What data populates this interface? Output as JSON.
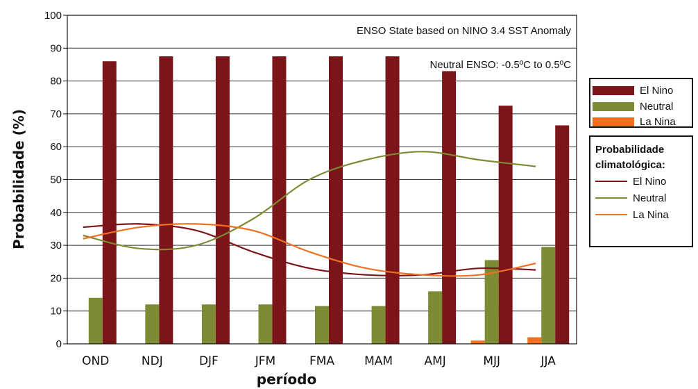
{
  "chart_data": {
    "type": "bar",
    "ylabel": "Probabilidade (%)",
    "xlabel": "período",
    "ylim": [
      0,
      100
    ],
    "yticks": [
      0,
      10,
      20,
      30,
      40,
      50,
      60,
      70,
      80,
      90,
      100
    ],
    "categories": [
      "OND",
      "NDJ",
      "DJF",
      "JFM",
      "FMA",
      "MAM",
      "AMJ",
      "MJJ",
      "JJA"
    ],
    "series": [
      {
        "name": "La Nina",
        "color": "#f07020",
        "values": [
          0,
          0,
          0,
          0,
          0,
          0,
          0,
          1,
          2
        ]
      },
      {
        "name": "Neutral",
        "color": "#7f8a35",
        "values": [
          14,
          12,
          12,
          12,
          11.5,
          11.5,
          16,
          25.5,
          29.5
        ]
      },
      {
        "name": "El Nino",
        "color": "#7c151a",
        "values": [
          86,
          87.5,
          87.5,
          87.5,
          87.5,
          87.5,
          83,
          72.5,
          66.5
        ]
      }
    ],
    "climatology_lines": [
      {
        "name": "El Nino",
        "color": "#7c151a",
        "values": [
          35.5,
          36.5,
          34.5,
          28,
          23,
          21,
          21,
          23,
          22.5
        ]
      },
      {
        "name": "Neutral",
        "color": "#7f8a35",
        "values": [
          33,
          29,
          30,
          38,
          50,
          56,
          58.5,
          56,
          54
        ]
      },
      {
        "name": "La Nina",
        "color": "#f07020",
        "values": [
          32,
          35.5,
          36.5,
          34.5,
          28,
          23,
          21,
          21,
          24.5
        ]
      }
    ],
    "annotations": [
      "ENSO State based on NINO 3.4 SST Anomaly",
      "Neutral ENSO: -0.5ºC to 0.5ºC"
    ],
    "legend_bars": [
      "El Nino",
      "Neutral",
      "La Nina"
    ],
    "legend_lines_title": "Probabilidade climatológica:",
    "legend_lines": [
      "El Nino",
      "Neutral",
      "La Nina"
    ],
    "legend_placement": "right",
    "grid": "horizontal"
  }
}
